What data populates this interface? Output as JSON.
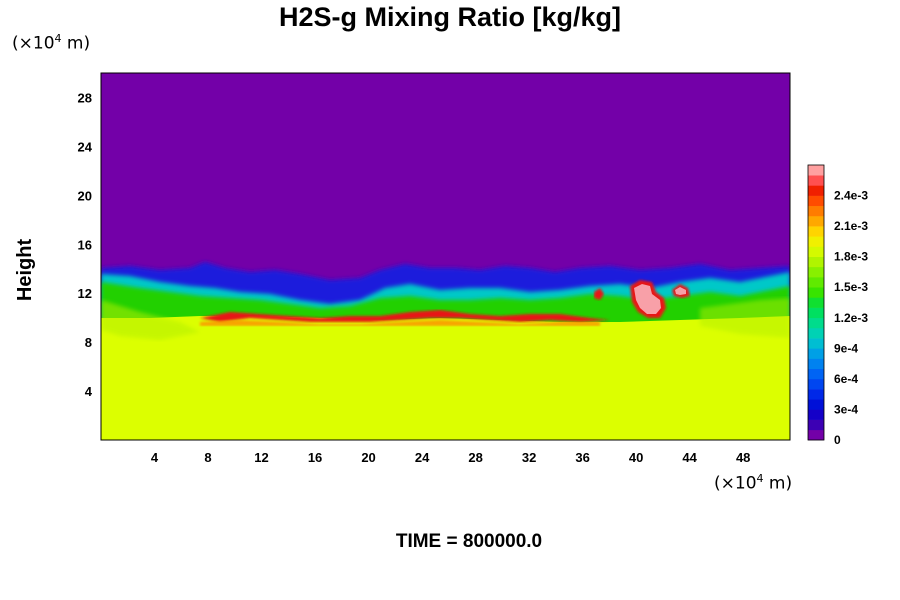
{
  "chart_data": {
    "type": "heatmap",
    "title": "H2S-g Mixing Ratio [kg/kg]",
    "ylabel": "Height",
    "xlabel": "",
    "x_unit": "(×10⁴ m)",
    "y_unit": "(×10⁴ m)",
    "xlim": [
      0,
      51.5
    ],
    "ylim": [
      0,
      30
    ],
    "x_ticks": [
      "4",
      "8",
      "12",
      "16",
      "20",
      "24",
      "28",
      "32",
      "36",
      "40",
      "44",
      "48"
    ],
    "y_ticks": [
      "4",
      "8",
      "12",
      "16",
      "20",
      "24",
      "28"
    ],
    "colorbar": {
      "labels": [
        "0",
        "3e-4",
        "6e-4",
        "9e-4",
        "1.2e-3",
        "1.5e-3",
        "1.8e-3",
        "2.1e-3",
        "2.4e-3"
      ],
      "range": [
        0,
        0.0027
      ],
      "levels": 27
    },
    "grid": false,
    "annotation": "TIME = 800000.0"
  }
}
